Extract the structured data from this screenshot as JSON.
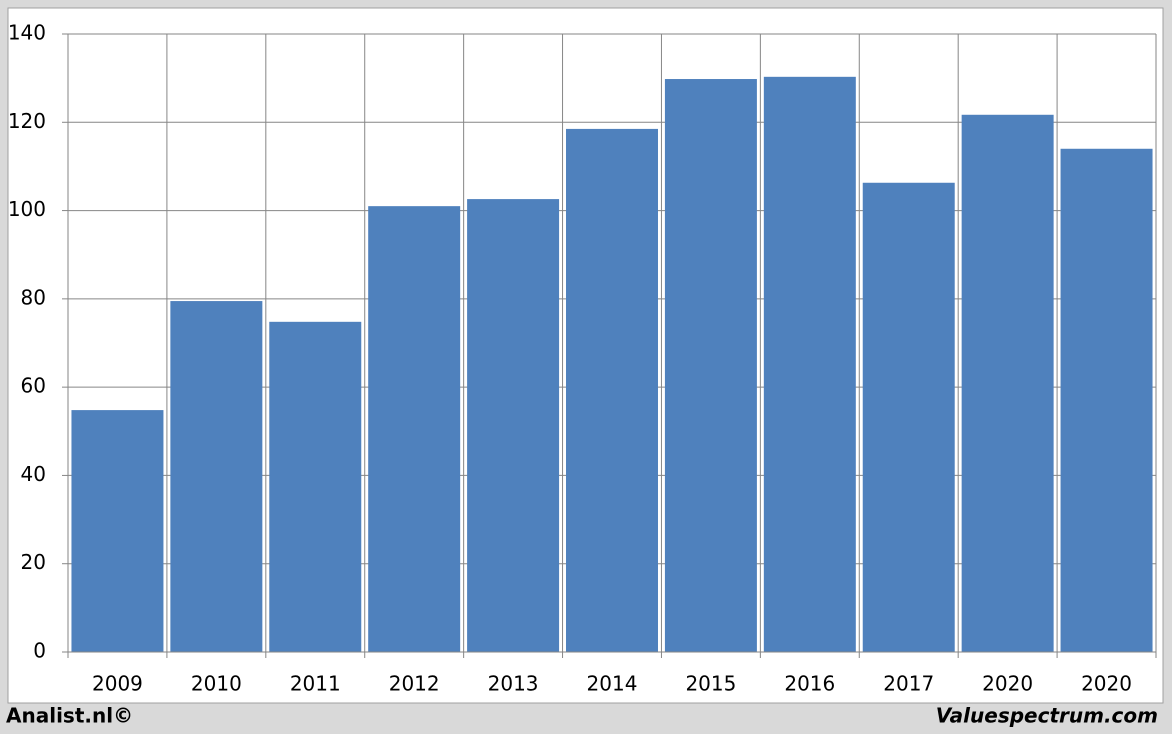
{
  "chart_data": {
    "type": "bar",
    "categories": [
      "2009",
      "2010",
      "2011",
      "2012",
      "2013",
      "2014",
      "2015",
      "2016",
      "2017",
      "2020",
      "2020"
    ],
    "values": [
      54.8,
      79.5,
      74.8,
      101.0,
      102.6,
      118.5,
      129.8,
      130.3,
      106.3,
      121.7,
      114.0
    ],
    "color": "#4f81bd",
    "ylim": [
      0,
      140
    ],
    "yticks": [
      0,
      20,
      40,
      60,
      80,
      100,
      120,
      140
    ],
    "grid": true
  },
  "footer": {
    "left": "Analist.nl©",
    "right": "Valuespectrum.com"
  }
}
